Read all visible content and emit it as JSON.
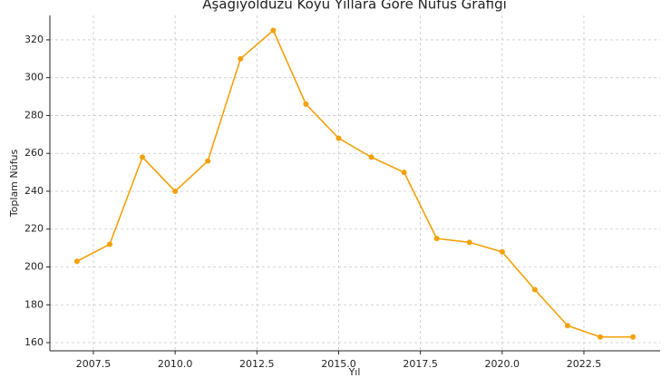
{
  "chart_data": {
    "type": "line",
    "title": "Aşağıyolduzu Köyü Yıllara Göre Nüfus Grafiği",
    "xlabel": "Yıl",
    "ylabel": "Toplam Nüfus",
    "x": [
      2007,
      2008,
      2009,
      2010,
      2011,
      2012,
      2013,
      2014,
      2015,
      2016,
      2017,
      2018,
      2019,
      2020,
      2021,
      2022,
      2023,
      2024
    ],
    "series": [
      {
        "name": "Nüfus",
        "color": "#f2a10b",
        "values": [
          203,
          212,
          258,
          240,
          256,
          310,
          325,
          286,
          268,
          258,
          250,
          215,
          213,
          208,
          188,
          169,
          163,
          163
        ]
      }
    ],
    "xlim": [
      2006.17,
      2024.83
    ],
    "xticks": [
      2007.5,
      {
        "value": 2010,
        "label": "2010.0"
      },
      2012.5,
      {
        "value": 2015,
        "label": "2015.0"
      },
      2017.5,
      {
        "value": 2020,
        "label": "2020.0"
      },
      2022.5
    ],
    "ylim": [
      155.7,
      332.9
    ],
    "yticks": [
      160,
      180,
      200,
      220,
      240,
      260,
      280,
      300,
      320
    ],
    "grid": true
  }
}
